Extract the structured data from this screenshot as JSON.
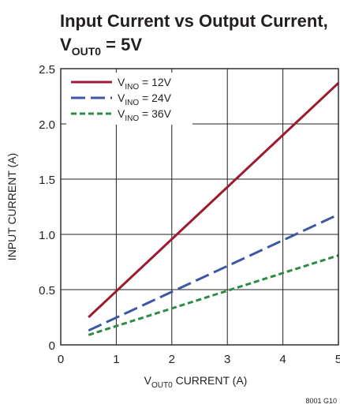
{
  "chart_data": {
    "type": "line",
    "title": {
      "line1": "Input Current vs Output Current,",
      "line2_main": "V",
      "line2_sub": "OUT0",
      "line2_rest": " = 5V"
    },
    "xlabel": {
      "main": "V",
      "sub": "OUT0",
      "rest": " CURRENT (A)"
    },
    "ylabel": "INPUT CURRENT (A)",
    "xlim": [
      0,
      5
    ],
    "ylim": [
      0,
      2.5
    ],
    "x_ticks": [
      "0",
      "1",
      "2",
      "3",
      "4",
      "5"
    ],
    "y_ticks": [
      "0",
      "0.5",
      "1.0",
      "1.5",
      "2.0",
      "2.5"
    ],
    "x_tick_values": [
      0,
      1,
      2,
      3,
      4,
      5
    ],
    "y_tick_values": [
      0,
      0.5,
      1.0,
      1.5,
      2.0,
      2.5
    ],
    "grid": true,
    "legend_position": "top-left",
    "series": [
      {
        "name": {
          "main": "V",
          "sub": "INO",
          "rest": " = 12V"
        },
        "color": "#9b1b30",
        "dash": "solid",
        "x": [
          0.5,
          5
        ],
        "y": [
          0.25,
          2.37
        ]
      },
      {
        "name": {
          "main": "V",
          "sub": "INO",
          "rest": " = 24V"
        },
        "color": "#3b57a5",
        "dash": "long-dash",
        "x": [
          0.5,
          5
        ],
        "y": [
          0.13,
          1.18
        ]
      },
      {
        "name": {
          "main": "V",
          "sub": "INO",
          "rest": " = 36V"
        },
        "color": "#2e8b45",
        "dash": "short-dash",
        "x": [
          0.5,
          5
        ],
        "y": [
          0.09,
          0.81
        ]
      }
    ],
    "figure_code": "8001 G10"
  }
}
